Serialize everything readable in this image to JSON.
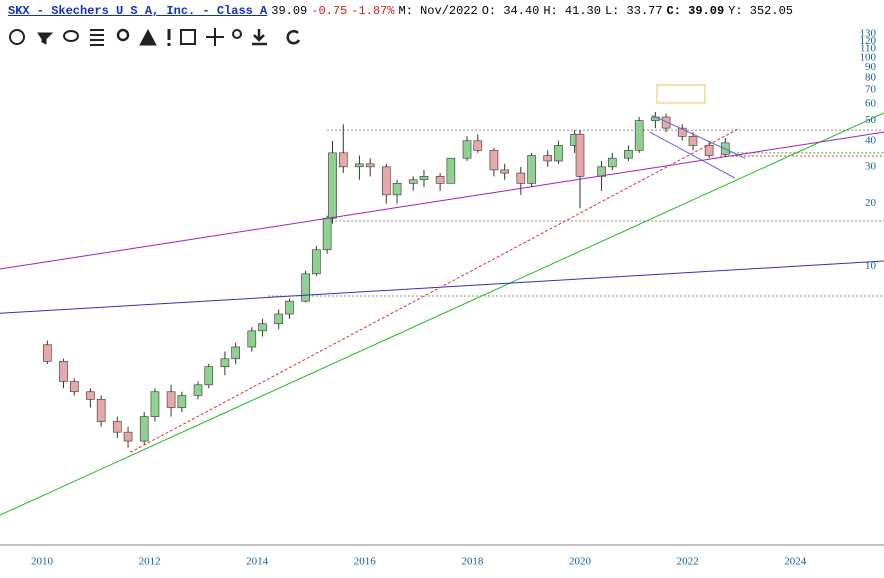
{
  "header": {
    "symbol": "SKX - Skechers U S A, Inc. - Class A",
    "last": "39.09",
    "change": "-0.75",
    "change_pct": "-1.87%",
    "period": "M: Nov/2022",
    "open": "O: 34.40",
    "high": "H: 41.30",
    "low": "L: 33.77",
    "close": "C: 39.09",
    "volume": "Y: 352.05"
  },
  "chart_data": {
    "type": "candlestick",
    "log_scale": true,
    "x": [
      2010.1,
      2010.4,
      2010.6,
      2010.9,
      2011.1,
      2011.4,
      2011.6,
      2011.9,
      2012.1,
      2012.4,
      2012.6,
      2012.9,
      2013.1,
      2013.4,
      2013.6,
      2013.9,
      2014.1,
      2014.4,
      2014.6,
      2014.9,
      2015.1,
      2015.3,
      2015.4,
      2015.6,
      2015.9,
      2016.1,
      2016.4,
      2016.6,
      2016.9,
      2017.1,
      2017.4,
      2017.6,
      2017.9,
      2018.1,
      2018.4,
      2018.6,
      2018.9,
      2019.1,
      2019.4,
      2019.6,
      2019.9,
      2020.0,
      2020.4,
      2020.6,
      2020.9,
      2021.1,
      2021.4,
      2021.6,
      2021.9,
      2022.1,
      2022.4,
      2022.7
    ],
    "open": [
      4.2,
      3.5,
      2.8,
      2.5,
      2.3,
      1.8,
      1.6,
      1.45,
      1.9,
      2.5,
      2.1,
      2.4,
      2.7,
      3.3,
      3.6,
      4.1,
      4.9,
      5.3,
      5.9,
      6.8,
      9.2,
      12,
      17,
      35,
      30,
      31,
      30,
      22,
      25,
      26,
      27,
      25,
      33,
      40,
      36,
      29,
      28,
      25,
      34,
      32,
      38,
      43,
      27,
      30,
      33,
      36,
      50,
      52,
      46,
      42,
      38,
      34.4
    ],
    "high": [
      4.4,
      3.6,
      2.9,
      2.6,
      2.4,
      1.9,
      1.7,
      2.0,
      2.6,
      2.7,
      2.5,
      2.8,
      3.4,
      3.9,
      4.3,
      5.1,
      5.6,
      6.2,
      7.0,
      9.5,
      12.5,
      17.5,
      40,
      48,
      34,
      33,
      31,
      26,
      27,
      29,
      28,
      33,
      42,
      43,
      37,
      31,
      30,
      35,
      36,
      40,
      45,
      45,
      32,
      35,
      38,
      52,
      55,
      54,
      48,
      44,
      40,
      41.3
    ],
    "low": [
      3.4,
      2.6,
      2.4,
      2.1,
      1.7,
      1.5,
      1.35,
      1.4,
      1.8,
      1.9,
      2.0,
      2.3,
      2.6,
      3.0,
      3.4,
      3.9,
      4.6,
      5.0,
      5.6,
      6.7,
      9.0,
      11.5,
      16,
      28,
      26,
      27,
      20,
      20,
      23,
      24,
      23,
      25,
      32,
      35,
      27,
      26,
      22,
      24,
      30,
      31,
      35,
      19,
      23,
      29,
      32,
      35,
      46,
      44,
      40,
      36,
      33,
      33.77
    ],
    "close": [
      3.5,
      2.8,
      2.5,
      2.3,
      1.8,
      1.6,
      1.45,
      1.9,
      2.5,
      2.1,
      2.4,
      2.7,
      3.3,
      3.6,
      4.1,
      4.9,
      5.3,
      5.9,
      6.8,
      9.2,
      12,
      17,
      35,
      30,
      31,
      30,
      22,
      25,
      26,
      27,
      25,
      33,
      40,
      36,
      29,
      28,
      25,
      34,
      32,
      38,
      43,
      27,
      30,
      33,
      36,
      50,
      52,
      46,
      42,
      38,
      34,
      39.09
    ],
    "up_color": "#90d090",
    "down_color": "#e8a8a8",
    "xlim": [
      2009.22,
      2025.65
    ],
    "ylim": [
      0.46,
      136
    ],
    "xticks": [
      2010,
      2012,
      2014,
      2016,
      2018,
      2020,
      2022,
      2024
    ],
    "yticks": [
      130,
      120,
      110,
      100,
      90,
      80,
      70,
      60,
      50,
      40,
      30,
      20,
      10
    ],
    "trendlines": [
      {
        "color": "#22bb22",
        "dash": false,
        "x": [
          2009.22,
          2025.65
        ],
        "y": [
          0.64,
          54.4
        ]
      },
      {
        "color": "#a020c0",
        "dash": false,
        "x": [
          2009.22,
          2025.65
        ],
        "y": [
          9.7,
          44
        ]
      },
      {
        "color": "#3030c0",
        "dash": false,
        "x": [
          2009.22,
          2025.65
        ],
        "y": [
          5.95,
          10.6
        ]
      },
      {
        "color": "#e03030",
        "dash": true,
        "x": [
          2011.64,
          2022.97
        ],
        "y": [
          1.28,
          46
        ]
      },
      {
        "color": "#6060e0",
        "dash": false,
        "x": [
          2021.34,
          2023.07
        ],
        "y": [
          53,
          33
        ]
      },
      {
        "color": "#6060e0",
        "dash": false,
        "x": [
          2021.3,
          2022.88
        ],
        "y": [
          44,
          26.5
        ]
      }
    ],
    "hlines": [
      {
        "color": "#888888",
        "x": 2015.3,
        "y": 45
      },
      {
        "color": "#888888",
        "x": 2015.3,
        "y": 16.5
      },
      {
        "color": "#888888",
        "x": 2014.2,
        "y": 7.2
      },
      {
        "color": "#22bb22",
        "x": 2022.7,
        "y": 35
      },
      {
        "color": "#e03030",
        "x": 2022.6,
        "y": 33.8
      }
    ]
  }
}
